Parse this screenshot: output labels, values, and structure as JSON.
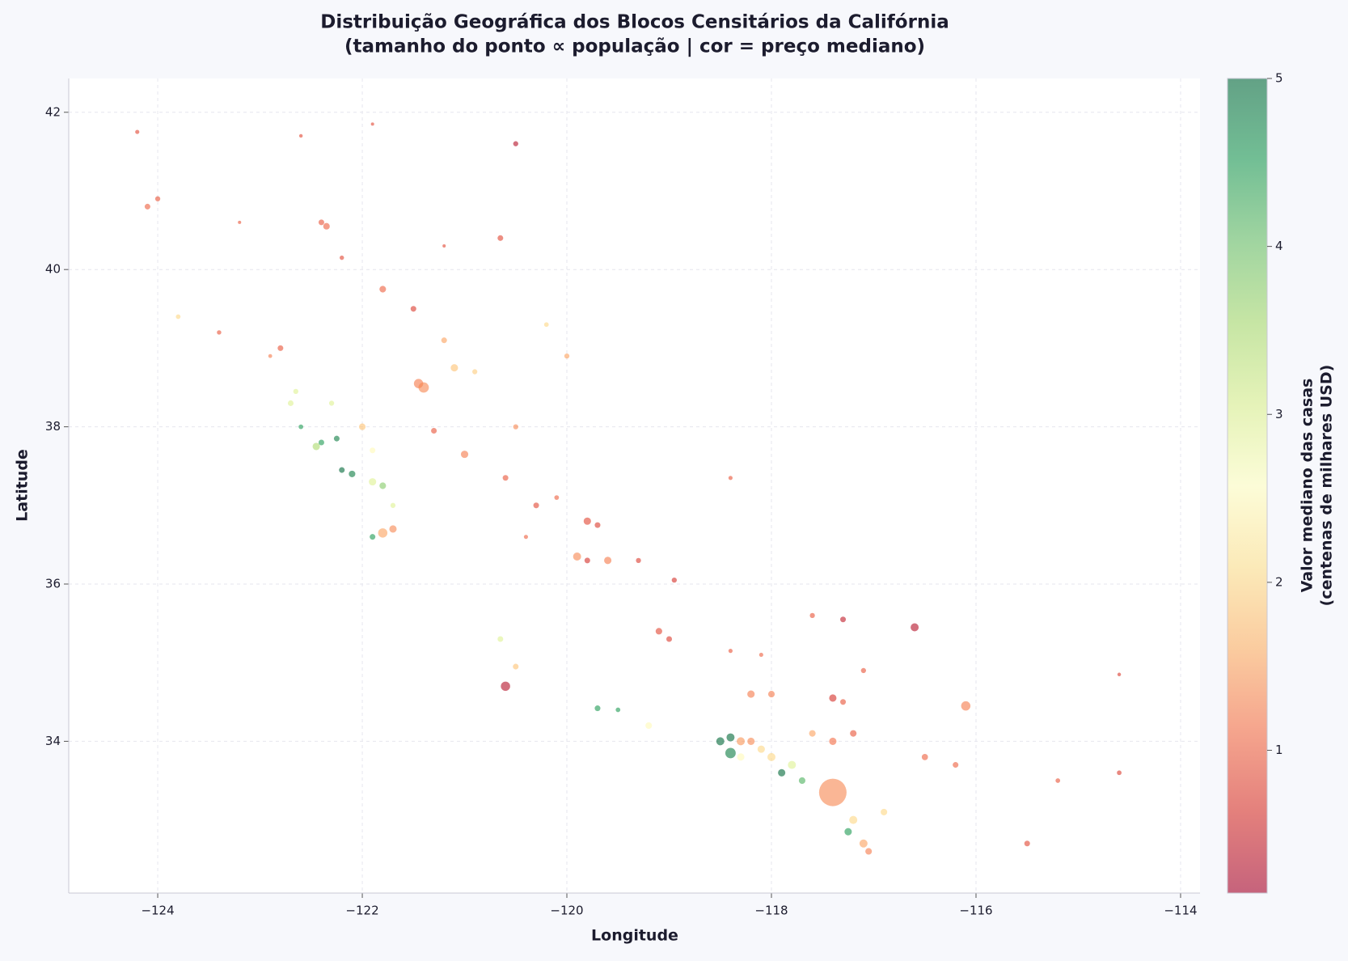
{
  "chart_data": {
    "type": "scatter",
    "title": [
      "Distribuição Geográfica dos Blocos Censitários da Califórnia",
      "(tamanho do ponto ∝ população  |  cor = preço mediano)"
    ],
    "xlabel": "Longitude",
    "ylabel": "Latitude",
    "colorbar_label": [
      "Valor mediano das casas",
      "(centenas de milhares USD)"
    ],
    "colormap": "RdYlGn",
    "grid": true,
    "xlim": [
      -124.87,
      -113.81
    ],
    "ylim": [
      32.07,
      42.43
    ],
    "clim": [
      0.15,
      5
    ],
    "xticks": [
      {
        "value": -124,
        "label": "−124"
      },
      {
        "value": -122,
        "label": "−122"
      },
      {
        "value": -120,
        "label": "−120"
      },
      {
        "value": -118,
        "label": "−118"
      },
      {
        "value": -116,
        "label": "−116"
      },
      {
        "value": -114,
        "label": "−114"
      }
    ],
    "yticks": [
      34,
      36,
      38,
      40,
      42
    ],
    "cticks": [
      1,
      2,
      3,
      4,
      5
    ],
    "x": [
      -124.1,
      -124.2,
      -124.0,
      -123.8,
      -123.4,
      -122.9,
      -122.35,
      -122.4,
      -122.2,
      -121.8,
      -121.5,
      -121.45,
      -121.4,
      -121.1,
      -121.2,
      -120.9,
      -122.45,
      -122.4,
      -122.25,
      -122.1,
      -122.2,
      -121.9,
      -121.9,
      -122.0,
      -122.6,
      -122.7,
      -122.65,
      -122.3,
      -121.8,
      -121.7,
      -121.8,
      -121.9,
      -121.7,
      -121.3,
      -121.0,
      -120.6,
      -119.8,
      -119.7,
      -119.8,
      -119.3,
      -119.1,
      -119.0,
      -119.6,
      -120.65,
      -120.5,
      -120.6,
      -119.7,
      -119.5,
      -119.2,
      -120.4,
      -118.4,
      -118.5,
      -118.4,
      -118.3,
      -118.2,
      -118.1,
      -118.0,
      -118.3,
      -118.2,
      -118.0,
      -117.6,
      -117.4,
      -117.2,
      -117.3,
      -117.8,
      -117.9,
      -117.7,
      -117.4,
      -117.2,
      -117.25,
      -117.1,
      -117.05,
      -116.9,
      -116.5,
      -116.2,
      -116.1,
      -116.6,
      -117.3,
      -115.5,
      -115.2,
      -114.6,
      -114.6,
      -117.1,
      -117.6,
      -118.4,
      -118.1,
      -117.4,
      -120.5,
      -121.9,
      -122.6,
      -120.65,
      -120.0,
      -120.5,
      -120.2,
      -119.9,
      -118.4,
      -120.3,
      -120.1,
      -118.95,
      -122.8,
      -123.2,
      -121.2
    ],
    "y": [
      40.8,
      41.75,
      40.9,
      39.4,
      39.2,
      38.9,
      40.55,
      40.6,
      40.15,
      39.75,
      39.5,
      38.55,
      38.5,
      38.75,
      39.1,
      38.7,
      37.75,
      37.8,
      37.85,
      37.4,
      37.45,
      37.3,
      37.7,
      38.0,
      38.0,
      38.3,
      38.45,
      38.3,
      37.25,
      37.0,
      36.65,
      36.6,
      36.7,
      37.95,
      37.65,
      37.35,
      36.8,
      36.75,
      36.3,
      36.3,
      35.4,
      35.3,
      36.3,
      35.3,
      34.95,
      34.7,
      34.42,
      34.4,
      34.2,
      36.6,
      34.05,
      34.0,
      33.85,
      34.0,
      34.0,
      33.9,
      33.8,
      33.8,
      34.6,
      34.6,
      34.1,
      34.0,
      34.1,
      34.5,
      33.7,
      33.6,
      33.5,
      33.35,
      33.0,
      32.85,
      32.7,
      32.6,
      33.1,
      33.8,
      33.7,
      34.45,
      35.45,
      35.55,
      32.7,
      33.5,
      33.6,
      34.85,
      34.9,
      35.6,
      35.15,
      35.1,
      34.55,
      41.6,
      41.85,
      41.7,
      40.4,
      38.9,
      38.0,
      39.3,
      36.35,
      37.35,
      37.0,
      37.1,
      36.05,
      39.0,
      40.6,
      40.3
    ],
    "sizes": [
      1500,
      800,
      1200,
      1000,
      900,
      700,
      2000,
      1500,
      900,
      2000,
      1500,
      4000,
      5000,
      2500,
      1500,
      1200,
      2500,
      1500,
      1500,
      2000,
      1500,
      2500,
      1500,
      2000,
      1000,
      1500,
      1200,
      1200,
      2000,
      1200,
      4000,
      1500,
      2500,
      1500,
      2500,
      1500,
      2500,
      1500,
      1500,
      1200,
      2000,
      1500,
      2500,
      1500,
      1500,
      4000,
      1500,
      1000,
      2000,
      800,
      3000,
      3000,
      5000,
      3000,
      2500,
      2500,
      3000,
      2500,
      2500,
      2000,
      2000,
      2500,
      2000,
      1500,
      3000,
      2500,
      2000,
      35000,
      3000,
      2500,
      3000,
      2000,
      2000,
      1800,
      1500,
      4000,
      3000,
      1500,
      1500,
      1000,
      1000,
      600,
      1200,
      1200,
      800,
      800,
      2500,
      1200,
      500,
      600,
      1500,
      1200,
      1200,
      1000,
      3000,
      800,
      1500,
      1000,
      1200,
      1500,
      500,
      500
    ],
    "values": [
      1.0,
      0.8,
      0.9,
      2.0,
      0.9,
      1.2,
      1.0,
      0.9,
      0.8,
      1.0,
      0.7,
      1.2,
      1.3,
      1.8,
      1.5,
      1.9,
      3.5,
      4.5,
      4.8,
      4.8,
      5.0,
      3.0,
      2.5,
      1.8,
      4.5,
      3.0,
      3.0,
      3.0,
      3.8,
      3.0,
      1.5,
      4.5,
      1.3,
      0.9,
      1.2,
      0.9,
      0.8,
      0.7,
      0.6,
      0.7,
      0.8,
      0.7,
      1.2,
      3.0,
      1.8,
      0.3,
      4.5,
      4.5,
      2.5,
      1.0,
      5.0,
      5.0,
      4.8,
      1.4,
      1.3,
      2.0,
      2.0,
      2.5,
      1.2,
      1.2,
      1.5,
      1.1,
      0.9,
      0.9,
      3.0,
      5.0,
      4.2,
      1.3,
      2.0,
      4.5,
      1.5,
      1.2,
      2.0,
      1.0,
      1.0,
      1.2,
      0.3,
      0.4,
      0.8,
      0.9,
      0.7,
      0.7,
      0.9,
      0.9,
      0.9,
      1.0,
      0.6,
      0.3,
      0.8,
      0.8,
      0.8,
      1.5,
      1.3,
      2.0,
      1.3,
      0.9,
      0.8,
      1.0,
      0.6,
      0.9,
      0.9,
      0.8
    ]
  }
}
